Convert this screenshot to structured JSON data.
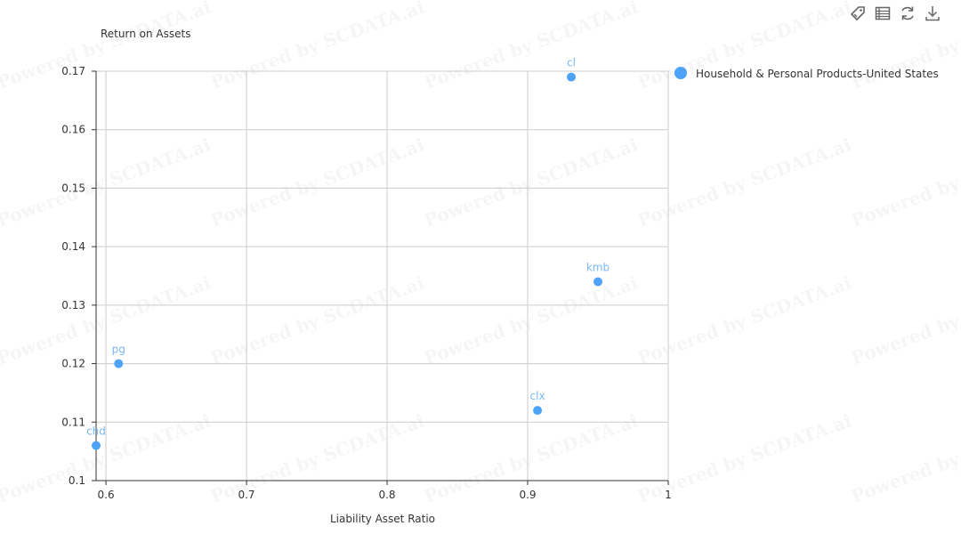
{
  "watermark": "Powered by SCDATA.ai",
  "toolbar": [
    {
      "name": "tag-icon",
      "label": "tag"
    },
    {
      "name": "data-view-icon",
      "label": "data view"
    },
    {
      "name": "refresh-icon",
      "label": "restore"
    },
    {
      "name": "download-icon",
      "label": "save as image"
    }
  ],
  "chart_data": {
    "type": "scatter",
    "xlabel": "Liability Asset Ratio",
    "ylabel": "Return on Assets",
    "xlim": [
      0.593,
      1.0
    ],
    "ylim": [
      0.1,
      0.17
    ],
    "xticks": [
      0.6,
      0.7,
      0.8,
      0.9,
      1
    ],
    "xtick_labels": [
      "0.6",
      "0.7",
      "0.8",
      "0.9",
      "1"
    ],
    "yticks": [
      0.1,
      0.11,
      0.12,
      0.13,
      0.14,
      0.15,
      0.16,
      0.17
    ],
    "ytick_labels": [
      "0.1",
      "0.11",
      "0.12",
      "0.13",
      "0.14",
      "0.15",
      "0.16",
      "0.17"
    ],
    "grid": true,
    "legend_position": "top-right",
    "color": "#4da3f7",
    "label_color": "#7ab8f5",
    "series": [
      {
        "name": "Household & Personal Products-United States",
        "points": [
          {
            "label": "cl",
            "x": 0.931,
            "y": 0.169
          },
          {
            "label": "kmb",
            "x": 0.95,
            "y": 0.134
          },
          {
            "label": "pg",
            "x": 0.609,
            "y": 0.12
          },
          {
            "label": "clx",
            "x": 0.907,
            "y": 0.112
          },
          {
            "label": "chd",
            "x": 0.593,
            "y": 0.106
          }
        ]
      }
    ]
  }
}
